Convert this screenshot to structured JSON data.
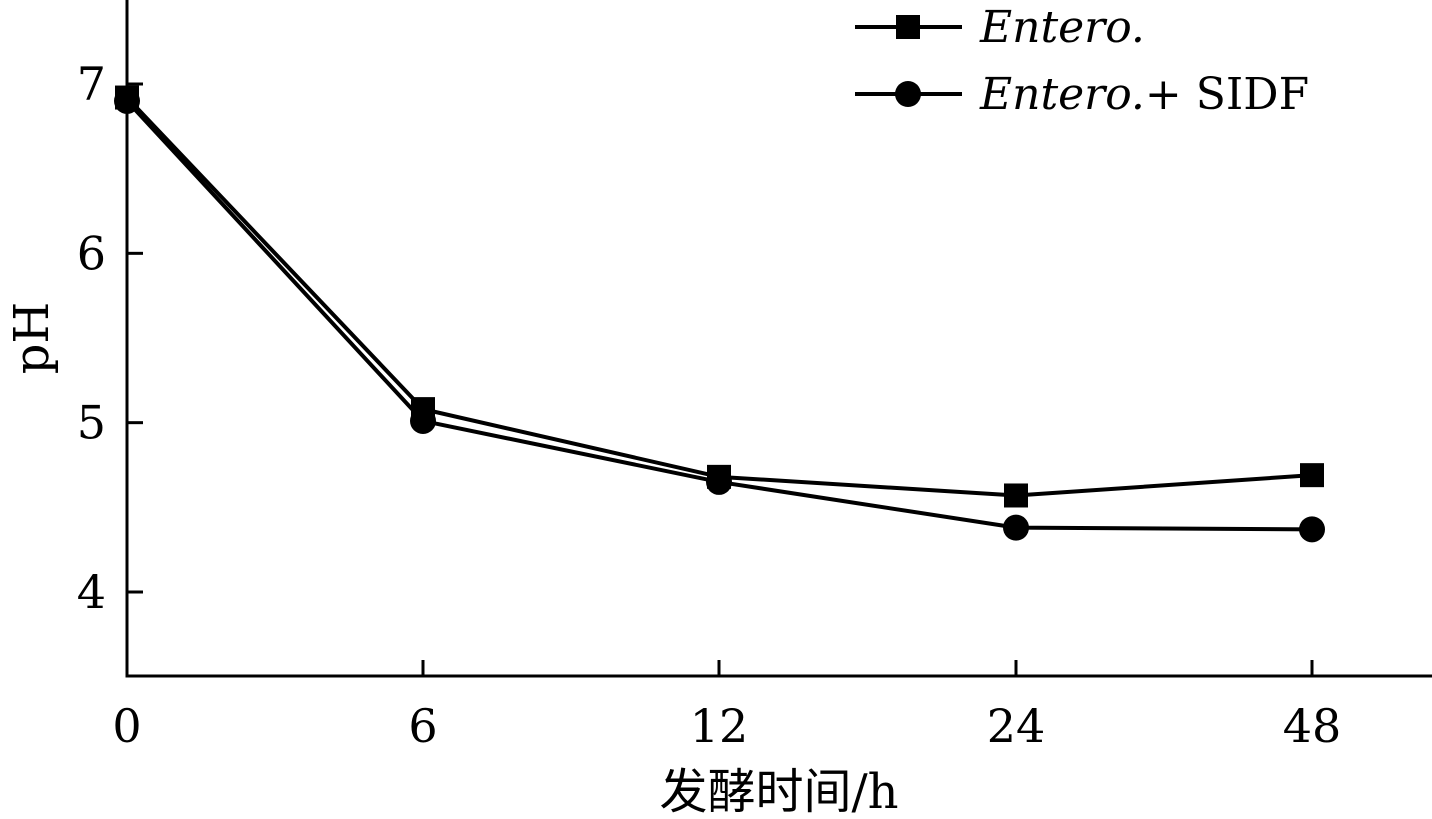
{
  "chart_data": {
    "type": "line",
    "title": "",
    "xlabel": "发酵时间/h",
    "ylabel": "pH",
    "categories": [
      "0",
      "6",
      "12",
      "24",
      "48"
    ],
    "yticks": [
      "4",
      "5",
      "6",
      "7"
    ],
    "ylim": [
      3.5,
      7.5
    ],
    "grid": false,
    "legend_position": "top-right",
    "series": [
      {
        "name_italic": "Entero.",
        "name_suffix": "",
        "marker": "square",
        "color": "#000000",
        "values": [
          6.92,
          5.08,
          4.68,
          4.57,
          4.69
        ]
      },
      {
        "name_italic": "Entero.",
        "name_suffix": "+ SIDF",
        "marker": "circle",
        "color": "#000000",
        "values": [
          6.9,
          5.01,
          4.65,
          4.38,
          4.37
        ]
      }
    ]
  }
}
